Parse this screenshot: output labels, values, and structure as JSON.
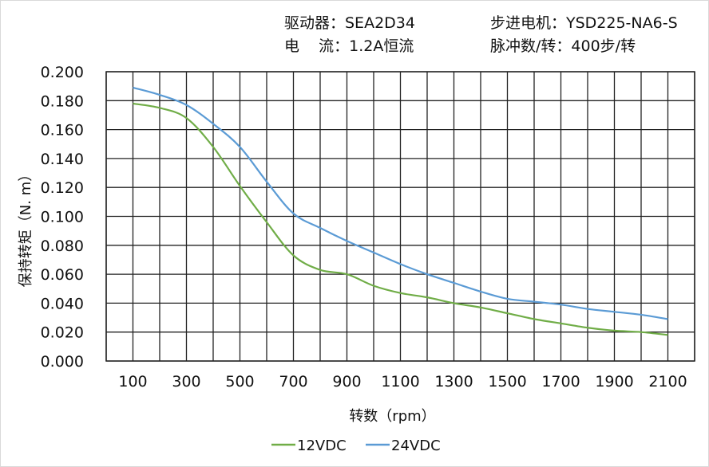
{
  "header": {
    "driver": "驱动器：SEA2D34",
    "current": "电    流：1.2A恒流",
    "motor": "步进电机：YSD225-NA6-S",
    "pulses": "脉冲数/转：400步/转"
  },
  "chart_data": {
    "type": "line",
    "xlabel": "转数（rpm）",
    "ylabel": "保持转矩（N. m）",
    "xlim": [
      0,
      2200
    ],
    "ylim": [
      0,
      0.2
    ],
    "x_ticks": [
      "100",
      "300",
      "500",
      "700",
      "900",
      "1100",
      "1300",
      "1500",
      "1700",
      "1900",
      "2100"
    ],
    "y_ticks": [
      "0.000",
      "0.020",
      "0.040",
      "0.060",
      "0.080",
      "0.100",
      "0.120",
      "0.140",
      "0.160",
      "0.180",
      "0.200"
    ],
    "grid": true,
    "legend": "bottom",
    "x": [
      100,
      200,
      300,
      400,
      500,
      600,
      700,
      800,
      900,
      1000,
      1100,
      1200,
      1300,
      1400,
      1500,
      1600,
      1700,
      1800,
      1900,
      2000,
      2100
    ],
    "series": [
      {
        "name": "12VDC",
        "color": "#70ad47",
        "values": [
          0.178,
          0.175,
          0.168,
          0.148,
          0.121,
          0.096,
          0.073,
          0.063,
          0.06,
          0.052,
          0.047,
          0.044,
          0.04,
          0.037,
          0.033,
          0.029,
          0.026,
          0.023,
          0.021,
          0.02,
          0.018
        ]
      },
      {
        "name": "24VDC",
        "color": "#5b9bd5",
        "values": [
          0.189,
          0.184,
          0.177,
          0.164,
          0.148,
          0.124,
          0.102,
          0.092,
          0.083,
          0.075,
          0.067,
          0.06,
          0.054,
          0.048,
          0.043,
          0.041,
          0.039,
          0.036,
          0.034,
          0.032,
          0.029
        ]
      }
    ]
  }
}
